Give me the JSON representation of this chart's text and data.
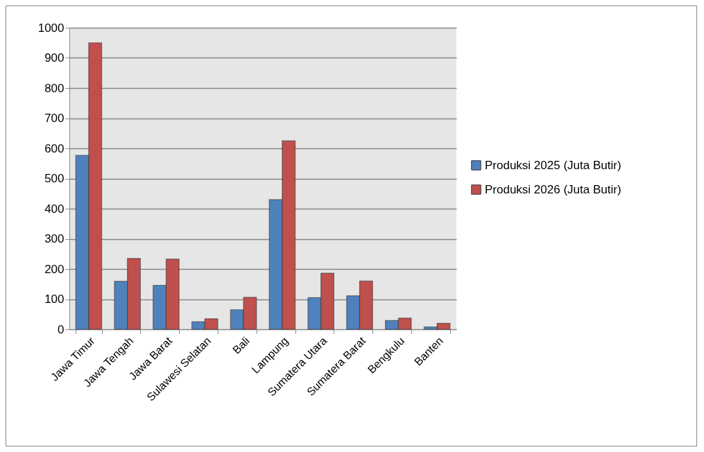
{
  "chart_data": {
    "type": "bar",
    "categories": [
      "Jawa Timur",
      "Jawa Tengah",
      "Jawa Barat",
      "Sulawesi Selatan",
      "Bali",
      "Lampung",
      "Sumatera Utara",
      "Sumatera Barat",
      "Bengkulu",
      "Banten"
    ],
    "series": [
      {
        "name": "Produksi 2025 (Juta Butir)",
        "color": "#4f81bd",
        "values": [
          577,
          159,
          146,
          25,
          65,
          430,
          105,
          111,
          29,
          8
        ]
      },
      {
        "name": "Produksi 2026 (Juta Butir)",
        "color": "#c0504d",
        "values": [
          950,
          235,
          233,
          35,
          106,
          625,
          186,
          160,
          37,
          20
        ]
      }
    ],
    "ylim": [
      0,
      1000
    ],
    "yticks": [
      0,
      100,
      200,
      300,
      400,
      500,
      600,
      700,
      800,
      900,
      1000
    ],
    "grid": "y",
    "legend": "right"
  }
}
